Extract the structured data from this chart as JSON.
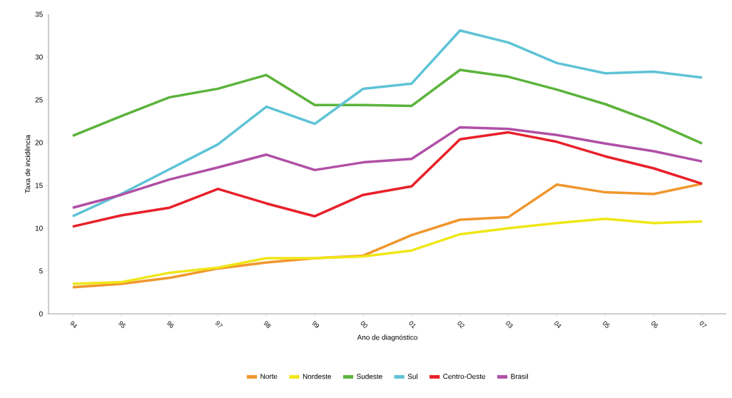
{
  "chart_data": {
    "type": "line",
    "xlabel": "Ano de diagnóstico",
    "ylabel": "Taxa de incidência",
    "categories": [
      "94",
      "95",
      "96",
      "97",
      "98",
      "99",
      "00",
      "01",
      "02",
      "03",
      "04",
      "05",
      "06",
      "07"
    ],
    "ylim": [
      0,
      35
    ],
    "yticks": [
      0,
      5,
      10,
      15,
      20,
      25,
      30,
      35
    ],
    "grid": false,
    "legend": "bottom",
    "marker": "none",
    "line_style": "solid",
    "series": [
      {
        "name": "Norte",
        "color": "#f0962d",
        "values": [
          3.1,
          3.5,
          4.2,
          5.3,
          6.0,
          6.5,
          6.8,
          9.2,
          11.0,
          11.3,
          15.1,
          14.2,
          14.0,
          15.2
        ]
      },
      {
        "name": "Nordeste",
        "color": "#f0e618",
        "values": [
          3.5,
          3.7,
          4.8,
          5.4,
          6.5,
          6.5,
          6.7,
          7.4,
          9.3,
          10.0,
          10.6,
          11.1,
          10.6,
          10.8
        ]
      },
      {
        "name": "Sudeste",
        "color": "#5cb33c",
        "values": [
          20.8,
          23.1,
          25.3,
          26.3,
          27.9,
          24.4,
          24.4,
          24.3,
          28.5,
          27.7,
          26.2,
          24.5,
          22.4,
          19.9
        ]
      },
      {
        "name": "Sul",
        "color": "#5ec3d6",
        "values": [
          11.4,
          14.0,
          16.9,
          19.8,
          24.2,
          22.2,
          26.3,
          26.9,
          33.1,
          31.7,
          29.3,
          28.1,
          28.3,
          27.6
        ]
      },
      {
        "name": "Centro-Oeste",
        "color": "#e8202a",
        "values": [
          10.2,
          11.5,
          12.4,
          14.6,
          12.9,
          11.4,
          13.9,
          14.9,
          20.4,
          21.2,
          20.1,
          18.4,
          17.0,
          15.2
        ]
      },
      {
        "name": "Brasil",
        "color": "#b04fa6",
        "values": [
          12.4,
          13.9,
          15.7,
          17.1,
          18.6,
          16.8,
          17.7,
          18.1,
          21.8,
          21.6,
          20.9,
          19.9,
          19.0,
          17.8
        ]
      }
    ]
  }
}
